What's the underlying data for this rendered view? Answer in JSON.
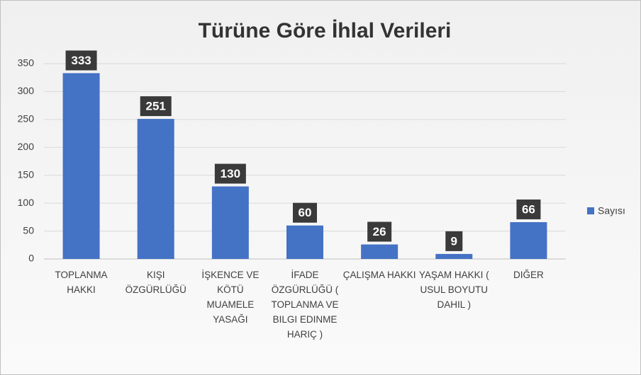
{
  "chart_data": {
    "type": "bar",
    "title": "Türüne Göre İhlal Verileri",
    "categories": [
      "TOPLANMA HAKKI",
      "KIŞI ÖZGÜRLÜĞÜ",
      "İŞKENCE VE KÖTÜ MUAMELE YASAĞI",
      "İFADE ÖZGÜRLÜĞÜ ( TOPLANMA VE BILGI EDINME HARIÇ )",
      "ÇALIŞMA HAKKI",
      "YAŞAM HAKKI ( USUL BOYUTU DAHIL )",
      "DIĞER"
    ],
    "series": [
      {
        "name": "Sayısı",
        "color": "#4472c4",
        "values": [
          333,
          251,
          130,
          60,
          26,
          9,
          66
        ]
      }
    ],
    "ylim": [
      0,
      350
    ],
    "yticks": [
      0,
      50,
      100,
      150,
      200,
      250,
      300,
      350
    ],
    "grid": true,
    "legend": "right"
  }
}
